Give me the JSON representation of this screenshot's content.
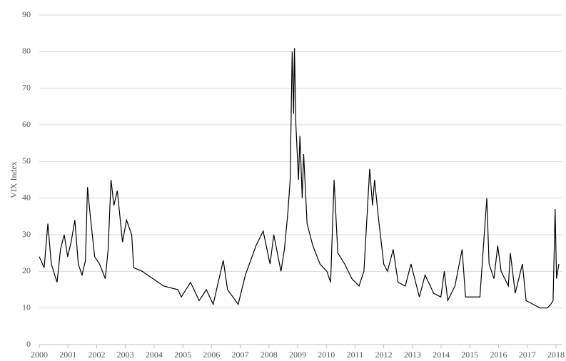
{
  "chart_data": {
    "type": "line",
    "y_label": "VIX Index",
    "x": [
      2000.0,
      2000.17,
      2000.3,
      2000.42,
      2000.62,
      2000.74,
      2000.87,
      2000.99,
      2001.11,
      2001.24,
      2001.36,
      2001.49,
      2001.61,
      2001.68,
      2001.78,
      2001.93,
      2002.1,
      2002.3,
      2002.4,
      2002.5,
      2002.6,
      2002.72,
      2002.9,
      2003.04,
      2003.22,
      2003.29,
      2003.59,
      2003.96,
      2004.33,
      2004.83,
      2004.95,
      2005.27,
      2005.57,
      2005.82,
      2006.06,
      2006.41,
      2006.56,
      2006.93,
      2007.18,
      2007.55,
      2007.8,
      2008.04,
      2008.17,
      2008.42,
      2008.54,
      2008.66,
      2008.74,
      2008.79,
      2008.81,
      2008.86,
      2008.89,
      2008.94,
      2009.03,
      2009.08,
      2009.16,
      2009.21,
      2009.33,
      2009.53,
      2009.78,
      2010.02,
      2010.15,
      2010.27,
      2010.4,
      2010.64,
      2010.89,
      2011.14,
      2011.31,
      2011.51,
      2011.61,
      2011.68,
      2011.81,
      2012.0,
      2012.13,
      2012.33,
      2012.5,
      2012.75,
      2012.95,
      2013.24,
      2013.44,
      2013.74,
      2013.99,
      2014.11,
      2014.23,
      2014.48,
      2014.73,
      2014.85,
      2015.1,
      2015.35,
      2015.59,
      2015.67,
      2015.84,
      2015.97,
      2016.09,
      2016.34,
      2016.41,
      2016.58,
      2016.83,
      2016.96,
      2017.2,
      2017.45,
      2017.7,
      2017.82,
      2017.9,
      2017.97,
      2018.02,
      2018.1
    ],
    "series": [
      {
        "name": "VIX",
        "color": "#000000",
        "values": [
          24,
          21,
          33,
          22,
          17,
          26,
          30,
          24,
          28,
          34,
          22,
          19,
          23,
          43,
          35,
          24,
          22,
          18,
          26,
          45,
          38,
          42,
          28,
          34,
          30,
          21,
          20,
          18,
          16,
          15,
          13,
          17,
          12,
          15,
          11,
          23,
          15,
          11,
          19,
          27,
          31,
          22,
          30,
          20,
          26,
          36,
          45,
          70,
          80,
          63,
          81,
          60,
          45,
          57,
          40,
          52,
          33,
          27,
          22,
          20,
          17,
          45,
          25,
          22,
          18,
          16,
          20,
          48,
          38,
          45,
          35,
          22,
          20,
          26,
          17,
          16,
          22,
          13,
          19,
          14,
          13,
          20,
          12,
          16,
          26,
          13,
          13,
          13,
          40,
          22,
          18,
          27,
          20,
          16,
          25,
          14,
          22,
          12,
          11,
          10,
          10,
          11,
          12,
          37,
          18,
          22
        ]
      }
    ],
    "xlim": [
      2000,
      2018.2
    ],
    "xticks": [
      2000,
      2001,
      2002,
      2003,
      2004,
      2005,
      2006,
      2007,
      2008,
      2009,
      2010,
      2011,
      2012,
      2013,
      2014,
      2015,
      2016,
      2017,
      2018
    ],
    "ylim": [
      0,
      90
    ],
    "yticks": [
      0,
      10,
      20,
      30,
      40,
      50,
      60,
      70,
      80,
      90
    ],
    "grid": true
  }
}
